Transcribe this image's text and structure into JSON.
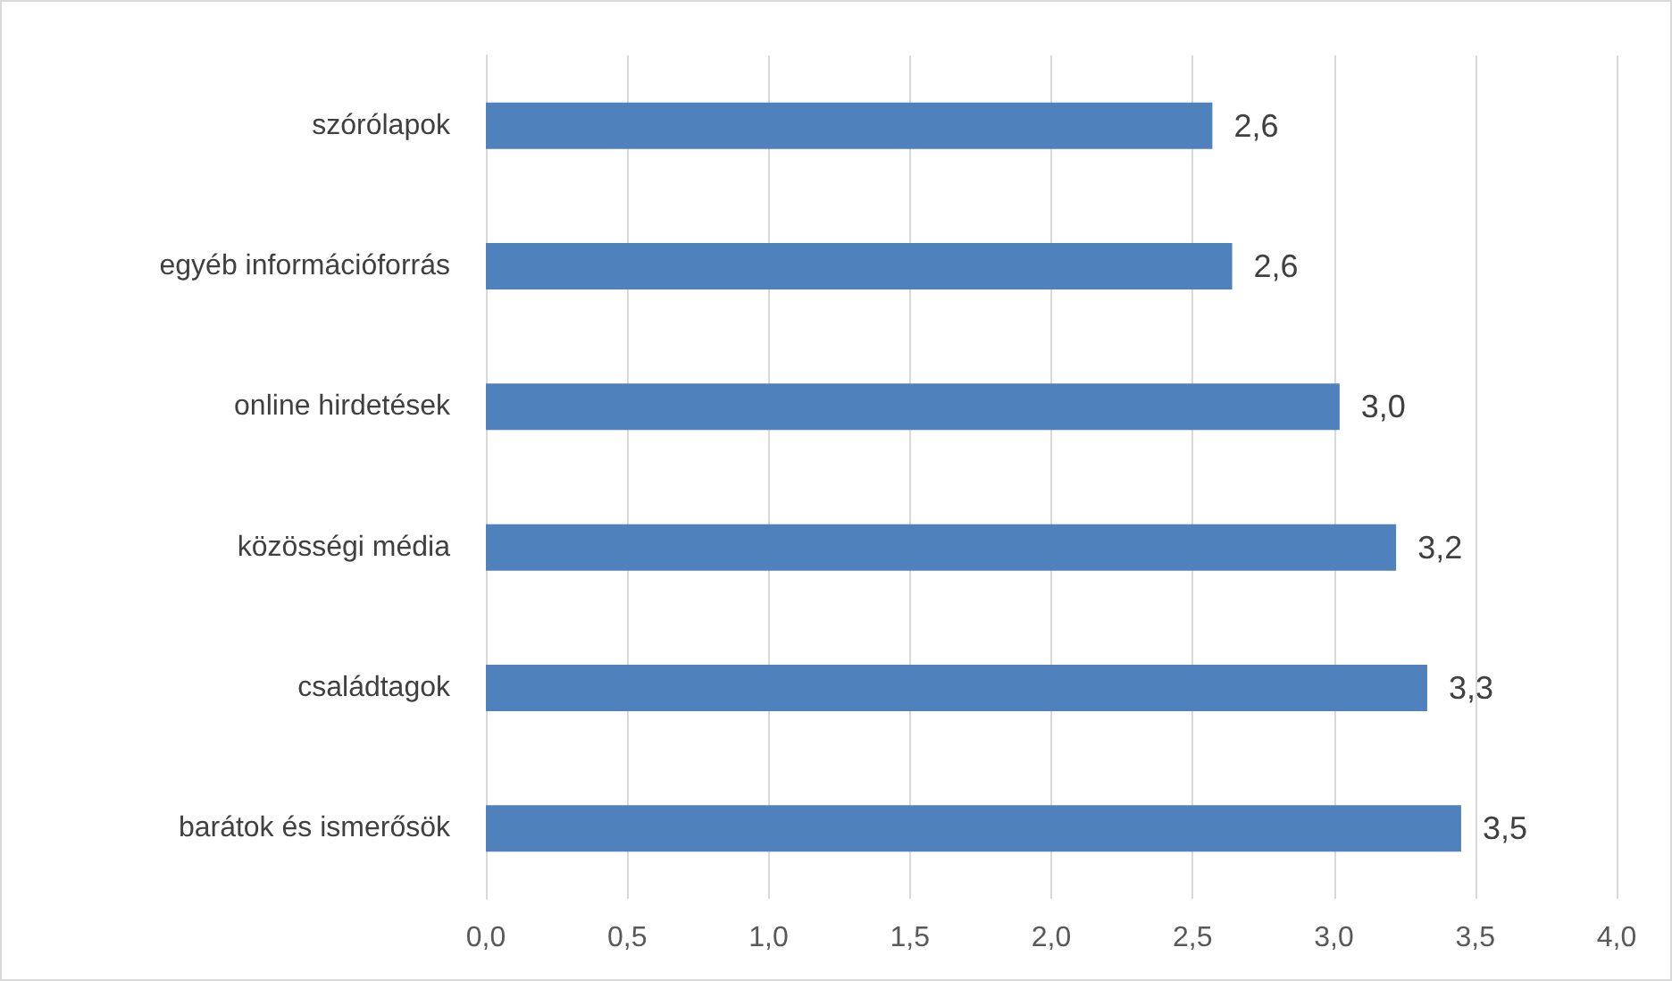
{
  "chart_data": {
    "type": "bar",
    "orientation": "horizontal",
    "categories": [
      "szórólapok",
      "egyéb információforrás",
      "online hirdetések",
      "közösségi média",
      "családtagok",
      "barátok és ismerősök"
    ],
    "values": [
      2.57,
      2.64,
      3.02,
      3.22,
      3.33,
      3.45
    ],
    "value_labels": [
      "2,6",
      "2,6",
      "3,0",
      "3,2",
      "3,3",
      "3,5"
    ],
    "color": "#4f81bd",
    "xlim": [
      0,
      4
    ],
    "xticks": [
      {
        "value": 0,
        "label": "0,0"
      },
      {
        "value": 0.5,
        "label": "0,5"
      },
      {
        "value": 1,
        "label": "1,0"
      },
      {
        "value": 1.5,
        "label": "1,5"
      },
      {
        "value": 2,
        "label": "2,0"
      },
      {
        "value": 2.5,
        "label": "2,5"
      },
      {
        "value": 3,
        "label": "3,0"
      },
      {
        "value": 3.5,
        "label": "3,5"
      },
      {
        "value": 4,
        "label": "4,0"
      }
    ],
    "grid": "x"
  }
}
